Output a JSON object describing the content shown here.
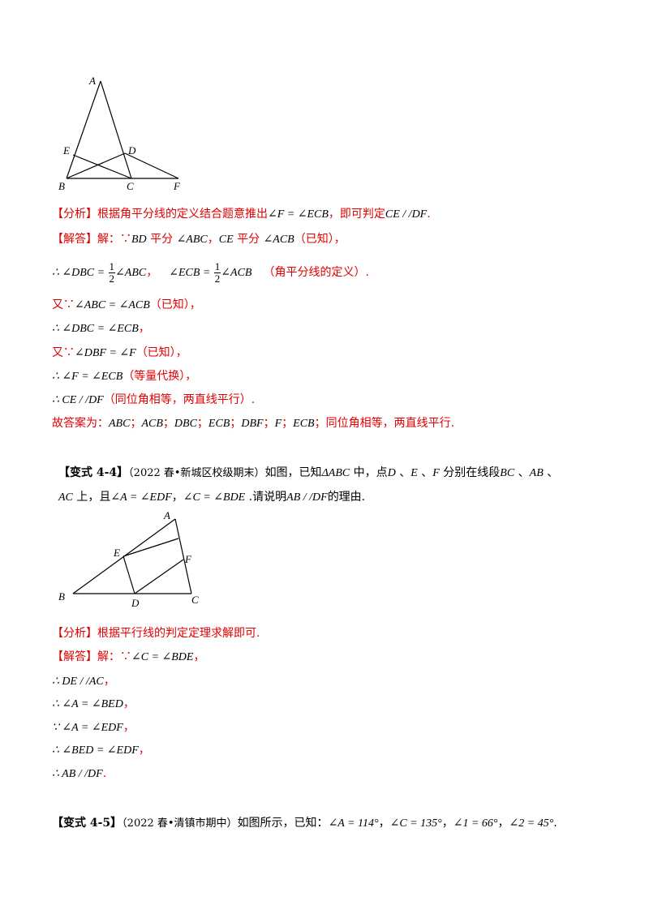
{
  "figure1": {
    "labels": {
      "A": "A",
      "B": "B",
      "C": "C",
      "D": "D",
      "E": "E",
      "F": "F"
    }
  },
  "sol1": {
    "analysis_tag": "【分析】",
    "analysis_text": "根据角平分线的定义结合题意推出",
    "analysis_math": "∠F = ∠ECB",
    "analysis_text2": "，即可判定",
    "analysis_math2": "CE / /DF",
    "analysis_end": ".",
    "answer_tag": "【解答】",
    "answer_intro": "解：∵",
    "l1_m1": "BD",
    "l1_t1": " 平分 ",
    "l1_m2": "∠ABC",
    "l1_t2": "，",
    "l1_m3": "CE",
    "l1_t3": " 平分 ",
    "l1_m4": "∠ACB",
    "l1_t4": "（已知），",
    "l2_m1": "∴ ∠DBC =",
    "l2_frac_num": "1",
    "l2_frac_den": "2",
    "l2_m2": "∠ABC",
    "l2_t1": "，",
    "l2_m3": "∠ECB =",
    "l2_m4": "∠ACB",
    "l2_t2": "（角平分线的定义）.",
    "l3_t1": "又∵",
    "l3_m1": "∠ABC = ∠ACB",
    "l3_t2": "（已知），",
    "l4_m1": "∴ ∠DBC = ∠ECB",
    "l4_t1": "，",
    "l5_t1": "又∵",
    "l5_m1": "∠DBF = ∠F",
    "l5_t2": "（已知），",
    "l6_m1": "∴ ∠F = ∠ECB",
    "l6_t1": "（等量代换），",
    "l7_m1": "∴ CE / /DF",
    "l7_t1": "（同位角相等，两直线平行）.",
    "l8_t1": "故答案为：",
    "l8_a1": "ABC",
    "l8_a2": "ACB",
    "l8_a3": "DBC",
    "l8_a4": "ECB",
    "l8_a5": "DBF",
    "l8_a6": "F",
    "l8_a7": "ECB",
    "l8_sep": "；",
    "l8_end": "同位角相等，两直线平行."
  },
  "q44": {
    "tag": "【变式 4-4】",
    "source": "（2022 春•新城区校级期末）",
    "t1": "如图，已知",
    "m1": "ΔABC",
    "t2": " 中，点",
    "m2": "D",
    "t3": " 、",
    "m3": "E",
    "t4": " 、",
    "m4": "F",
    "t5": " 分别在线段",
    "m5": "BC",
    "t6": " 、",
    "m6": "AB",
    "t7": " 、",
    "l2_m1": "AC",
    "l2_t1": " 上，且",
    "l2_m2": "∠A = ∠EDF",
    "l2_t2": "，",
    "l2_m3": "∠C = ∠BDE",
    "l2_t3": " .请说明",
    "l2_m4": "AB / /DF",
    "l2_t4": "的理由."
  },
  "figure2": {
    "labels": {
      "A": "A",
      "B": "B",
      "C": "C",
      "D": "D",
      "E": "E",
      "F": "F"
    }
  },
  "sol2": {
    "analysis_tag": "【分析】",
    "analysis_text": "根据平行线的判定定理求解即可.",
    "answer_tag": "【解答】",
    "answer_intro": "解：∵",
    "l1_m1": "∠C = ∠BDE",
    "l1_t1": "，",
    "l2_m1": "∴ DE / /AC",
    "l2_t1": "，",
    "l3_m1": "∴ ∠A = ∠BED",
    "l3_t1": "，",
    "l4_m1": "∵ ∠A = ∠EDF",
    "l4_t1": "，",
    "l5_m1": "∴ ∠BED = ∠EDF",
    "l5_t1": "，",
    "l6_m1": "∴ AB / /DF",
    "l6_t1": "."
  },
  "q45": {
    "tag": "【变式 4-5】",
    "source": "（2022 春•清镇市期中）",
    "t1": "如图所示，已知：",
    "m1": "∠A = 114°",
    "t2": "，",
    "m2": "∠C = 135°",
    "t3": "，",
    "m3": "∠1 = 66°",
    "t4": "，",
    "m4": "∠2 = 45°",
    "t5": "."
  }
}
